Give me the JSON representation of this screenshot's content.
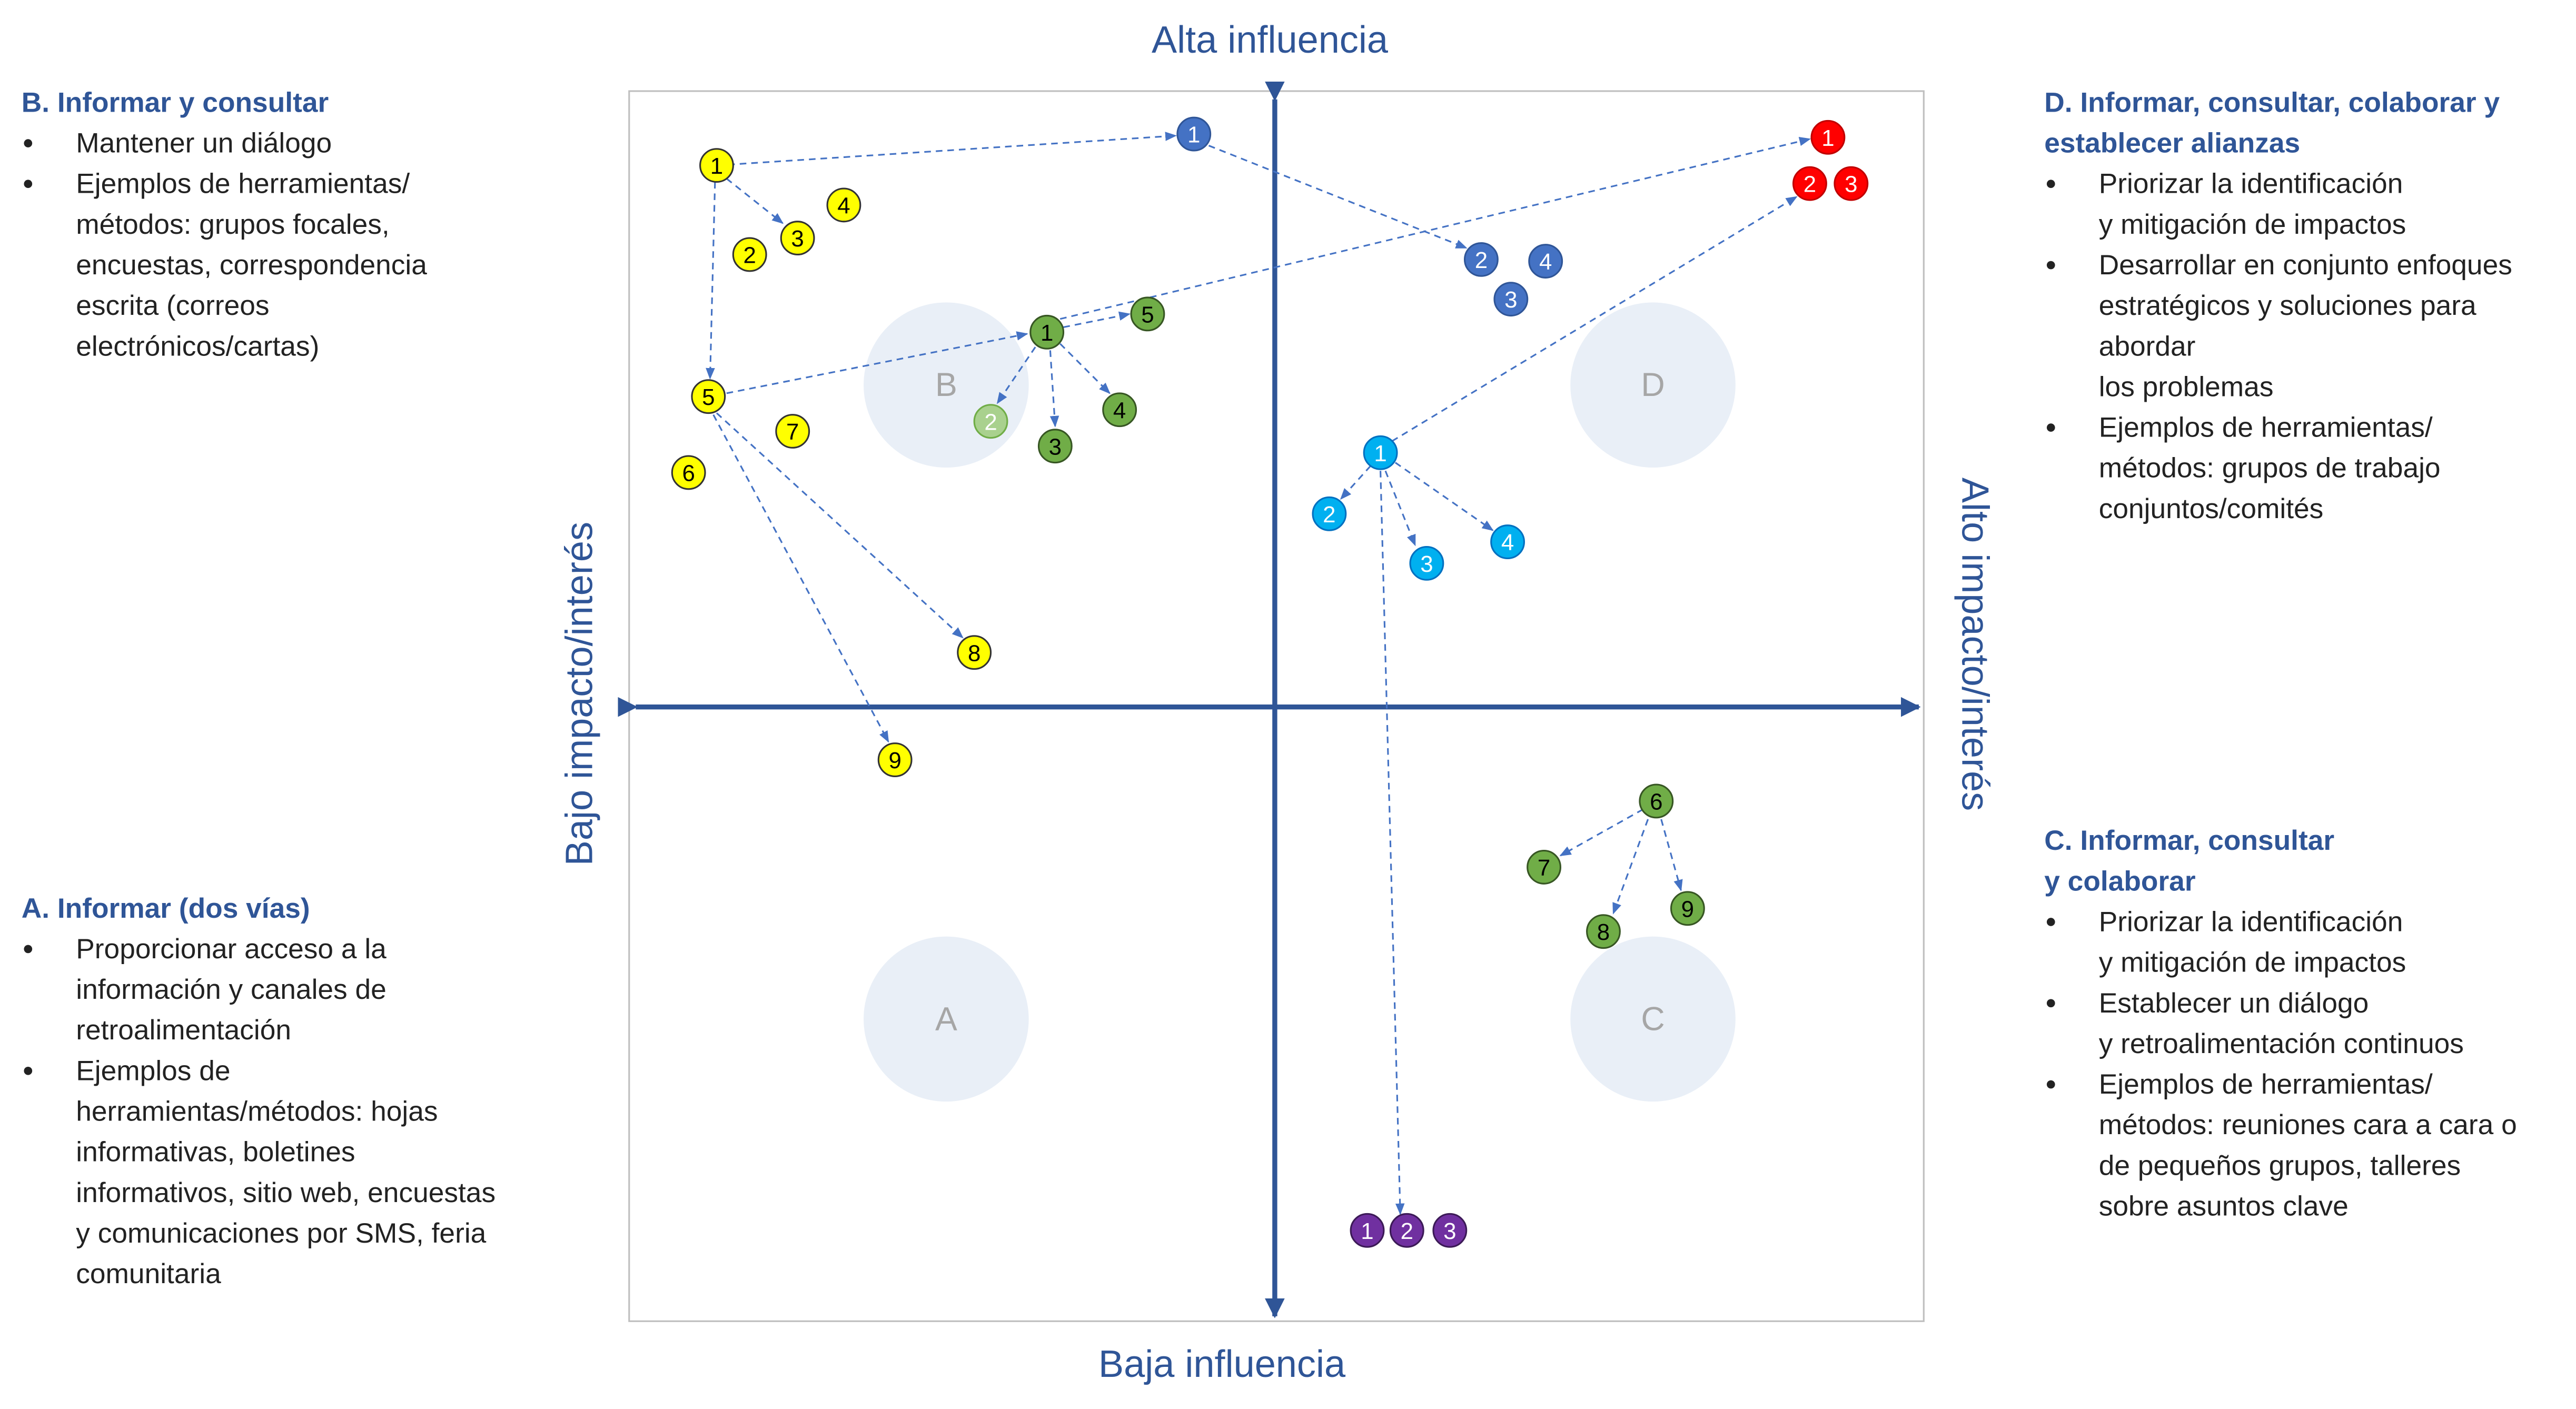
{
  "axes": {
    "top": "Alta influencia",
    "bottom": "Baja influencia",
    "left": "Bajo impacto/interés",
    "right": "Alto impacto/interés"
  },
  "quadrants": {
    "A": "A",
    "B": "B",
    "C": "C",
    "D": "D"
  },
  "panels": [
    {
      "title": [
        "B. Informar y consultar"
      ],
      "bullets": [
        [
          "Mantener un diálogo"
        ],
        [
          "Ejemplos de herramientas/",
          "métodos: grupos focales,",
          "encuestas, correspondencia",
          "escrita (correos",
          "electrónicos/cartas)"
        ]
      ]
    },
    {
      "title": [
        "A. Informar (dos vías)"
      ],
      "bullets": [
        [
          "Proporcionar acceso a la",
          "información y canales de",
          "retroalimentación"
        ],
        [
          "Ejemplos de",
          "herramientas/métodos: hojas",
          "informativas, boletines",
          "informativos, sitio web, encuestas",
          "y comunicaciones por SMS, feria",
          "comunitaria"
        ]
      ]
    },
    {
      "title": [
        "D. Informar, consultar, colaborar y",
        "establecer alianzas"
      ],
      "bullets": [
        [
          "Priorizar la identificación",
          "y mitigación de impactos"
        ],
        [
          "Desarrollar en conjunto enfoques",
          "estratégicos y soluciones para",
          "abordar",
          "los problemas"
        ],
        [
          "Ejemplos de herramientas/",
          "métodos: grupos de trabajo",
          "conjuntos/comités"
        ]
      ]
    },
    {
      "title": [
        "C. Informar, consultar",
        "y colaborar"
      ],
      "bullets": [
        [
          "Priorizar la identificación",
          "y mitigación de impactos"
        ],
        [
          "Establecer un diálogo",
          "y retroalimentación continuos"
        ],
        [
          "Ejemplos de herramientas/",
          "métodos: reuniones cara a cara o",
          "de pequeños grupos, talleres",
          "sobre asuntos clave"
        ]
      ]
    }
  ],
  "nodes": [
    "1",
    "2",
    "3",
    "4",
    "5",
    "6",
    "7",
    "8",
    "9",
    "1",
    "2",
    "3",
    "4",
    "1",
    "2",
    "3",
    "1",
    "2",
    "3",
    "4",
    "5",
    "6",
    "7",
    "8",
    "9",
    "1",
    "2",
    "3",
    "4",
    "1",
    "2",
    "3"
  ]
}
